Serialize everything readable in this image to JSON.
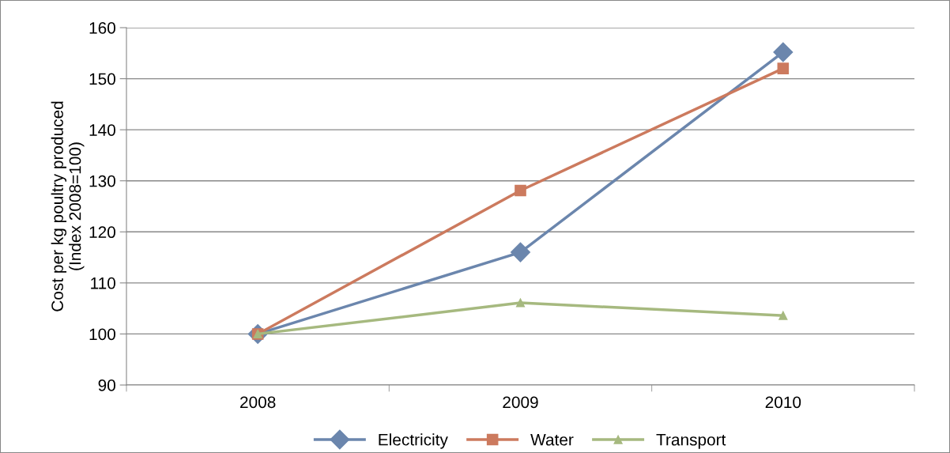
{
  "chart_data": {
    "type": "line",
    "ylabel": "Cost per kg poultry produced\n(Index 2008=100)",
    "categories": [
      "2008",
      "2009",
      "2010"
    ],
    "series": [
      {
        "name": "Electricity",
        "color": "#6b86ad",
        "marker": "diamond",
        "values": [
          100,
          116,
          155.2
        ]
      },
      {
        "name": "Water",
        "color": "#cc7a5e",
        "marker": "square",
        "values": [
          100,
          128.1,
          152
        ]
      },
      {
        "name": "Transport",
        "color": "#a6b97f",
        "marker": "triangle",
        "values": [
          100,
          106.1,
          103.6
        ]
      }
    ],
    "ylim": [
      90,
      160
    ],
    "yticks": [
      90,
      100,
      110,
      120,
      130,
      140,
      150,
      160
    ],
    "grid": "y",
    "legend": "bottom",
    "line_style": "solid"
  }
}
